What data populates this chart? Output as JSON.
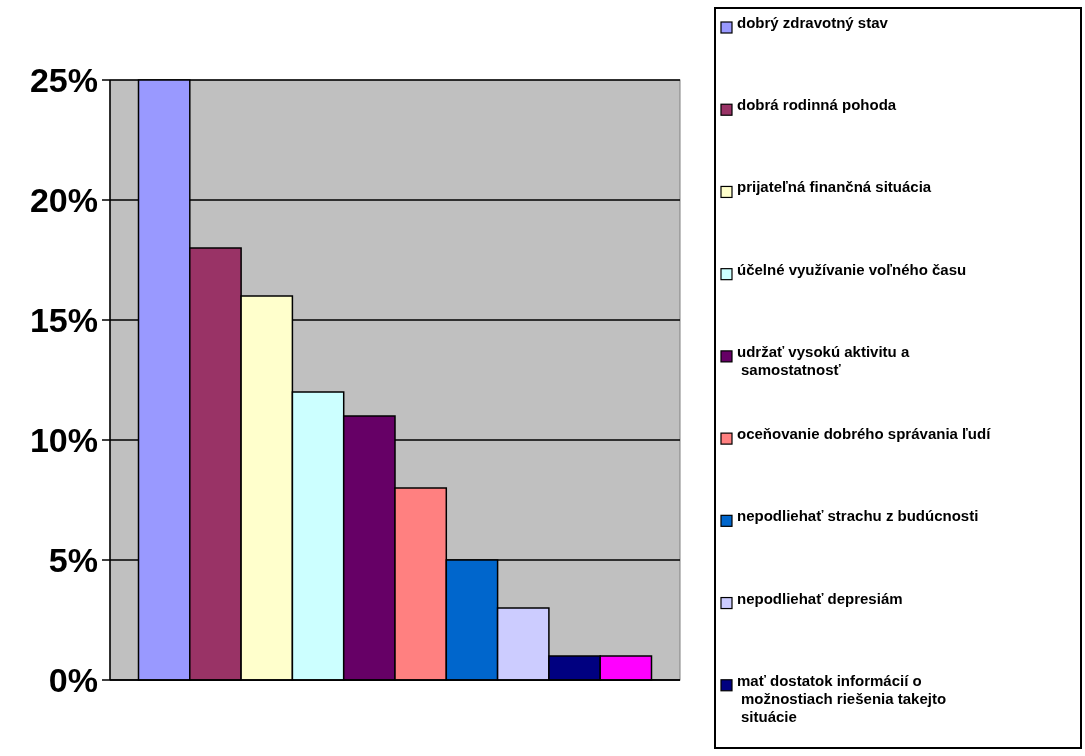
{
  "chart_data": {
    "type": "bar",
    "categories": [
      null
    ],
    "series": [
      {
        "name": "dobrý zdravotný stav",
        "color": "#9999ff",
        "values": [
          25
        ]
      },
      {
        "name": "dobrá rodinná pohoda",
        "color": "#993366",
        "values": [
          18
        ]
      },
      {
        "name": "prijateľná finančná situácia",
        "color": "#ffffcc",
        "values": [
          16
        ]
      },
      {
        "name": "účelné využívanie voľného času",
        "color": "#ccffff",
        "values": [
          12
        ]
      },
      {
        "name": "udržať vysokú aktivitu a samostatnosť",
        "color": "#660066",
        "values": [
          11
        ]
      },
      {
        "name": "oceňovanie dobrého správania ľudí",
        "color": "#ff8080",
        "values": [
          8
        ]
      },
      {
        "name": "nepodliehať strachu z budúcnosti",
        "color": "#0066cc",
        "values": [
          5
        ]
      },
      {
        "name": "nepodliehať depresiám",
        "color": "#ccccff",
        "values": [
          3
        ]
      },
      {
        "name": "mať dostatok informácií o možnostiach riešenia takejto situácie",
        "color": "#000080",
        "values": [
          1
        ]
      },
      {
        "color": "#ff00ff",
        "values": [
          1
        ]
      }
    ],
    "ylim": [
      0,
      25
    ],
    "yticks": [
      {
        "value": 0,
        "label": "0%"
      },
      {
        "value": 5,
        "label": "5%"
      },
      {
        "value": 10,
        "label": "10%"
      },
      {
        "value": 15,
        "label": "15%"
      },
      {
        "value": 20,
        "label": "20%"
      },
      {
        "value": 25,
        "label": "25%"
      }
    ],
    "grid": "y",
    "legend": "right"
  }
}
